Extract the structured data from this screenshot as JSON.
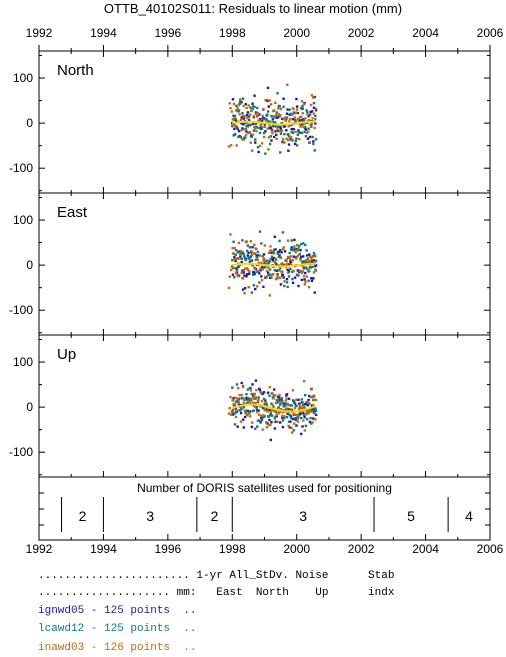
{
  "chart_data": {
    "type": "scatter",
    "title": "OTTB_40102S011: Residuals to linear motion (mm)",
    "x_ticks": [
      "1992",
      "1994",
      "1996",
      "1998",
      "2000",
      "2002",
      "2004",
      "2006"
    ],
    "xlim": [
      1992,
      2006
    ],
    "panels": [
      {
        "name": "North",
        "ylim": [
          -155,
          160
        ],
        "y_ticks": [
          "100",
          "0",
          "-100"
        ],
        "y_tick_values": [
          100,
          0,
          -100
        ]
      },
      {
        "name": "East",
        "ylim": [
          -155,
          160
        ],
        "y_ticks": [
          "100",
          "0",
          "-100"
        ],
        "y_tick_values": [
          100,
          0,
          -100
        ]
      },
      {
        "name": "Up",
        "ylim": [
          -155,
          160
        ],
        "y_ticks": [
          "100",
          "0",
          "-100"
        ],
        "y_tick_values": [
          100,
          0,
          -100
        ]
      }
    ],
    "series": [
      {
        "color": "#1a1aa0",
        "x_range": [
          1998.0,
          2000.6
        ]
      },
      {
        "color": "#107a7a",
        "x_range": [
          1998.0,
          2000.6
        ]
      },
      {
        "color": "#c06a10",
        "x_range": [
          1997.9,
          2000.6
        ]
      }
    ],
    "trend_color": "#ffd800",
    "satellites": {
      "title": "Number of DORIS satellites used for positioning",
      "segments": [
        {
          "start": 1992.7,
          "end": 1994.0,
          "label": "2"
        },
        {
          "start": 1994.0,
          "end": 1996.9,
          "label": "3"
        },
        {
          "start": 1996.9,
          "end": 1998.0,
          "label": "2"
        },
        {
          "start": 1998.0,
          "end": 2002.4,
          "label": "3"
        },
        {
          "start": 2002.4,
          "end": 2004.7,
          "label": "5"
        },
        {
          "start": 2004.7,
          "end": 2006.0,
          "label": "4"
        }
      ]
    }
  },
  "legend": {
    "header1": "....................... 1-yr All_StDv. Noise      Stab",
    "header2": ".................... mm:   East  North    Up      indx",
    "rows": [
      {
        "text": "ignwd05 - 125 points  ..",
        "color": "#1a1aa0"
      },
      {
        "text": "lcawd12 - 125 points  ..",
        "color": "#107a7a"
      },
      {
        "text": "inawd03 - 126 points  ..",
        "color": "#c06a10"
      }
    ]
  }
}
